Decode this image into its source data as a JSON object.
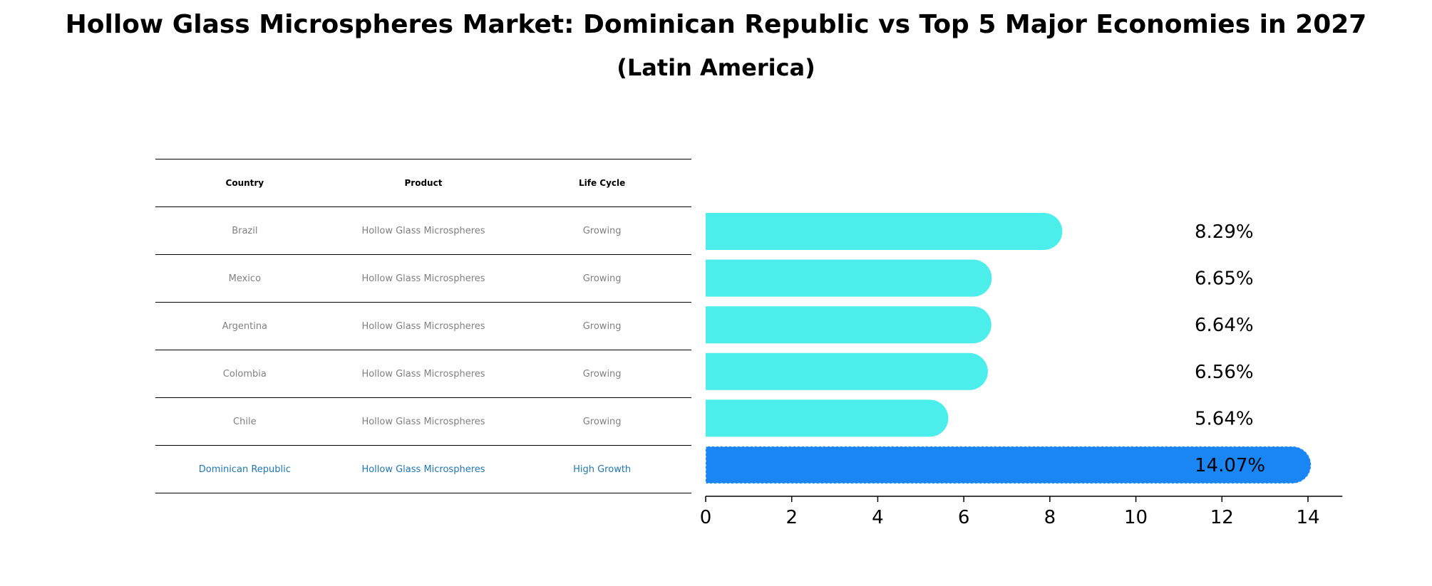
{
  "chart_data": {
    "type": "bar",
    "orientation": "horizontal",
    "title": "Hollow Glass Microspheres Market: Dominican Republic vs Top 5 Major Economies in 2027",
    "subtitle": "(Latin America)",
    "table": {
      "headers": [
        "Country",
        "Product",
        "Life Cycle"
      ],
      "rows": [
        {
          "country": "Brazil",
          "product": "Hollow Glass Microspheres",
          "life_cycle": "Growing"
        },
        {
          "country": "Mexico",
          "product": "Hollow Glass Microspheres",
          "life_cycle": "Growing"
        },
        {
          "country": "Argentina",
          "product": "Hollow Glass Microspheres",
          "life_cycle": "Growing"
        },
        {
          "country": "Colombia",
          "product": "Hollow Glass Microspheres",
          "life_cycle": "Growing"
        },
        {
          "country": "Chile",
          "product": "Hollow Glass Microspheres",
          "life_cycle": "Growing"
        },
        {
          "country": "Dominican Republic",
          "product": "Hollow Glass Microspheres",
          "life_cycle": "High Growth"
        }
      ]
    },
    "categories": [
      "Brazil",
      "Mexico",
      "Argentina",
      "Colombia",
      "Chile",
      "Dominican Republic"
    ],
    "values": [
      8.29,
      6.65,
      6.64,
      6.56,
      5.64,
      14.07
    ],
    "value_labels": [
      "8.29%",
      "6.65%",
      "6.64%",
      "6.56%",
      "5.64%",
      "14.07%"
    ],
    "xticks": [
      "0",
      "2",
      "4",
      "6",
      "8",
      "10",
      "12",
      "14"
    ],
    "xlim": [
      0,
      14.8
    ],
    "xlabel": "",
    "ylabel": "",
    "grid": false,
    "colors": {
      "bar": "#4beeeb",
      "highlight_bar": "#1a86f4",
      "highlight_text": "#1f77b4",
      "text_muted": "#808080"
    }
  }
}
